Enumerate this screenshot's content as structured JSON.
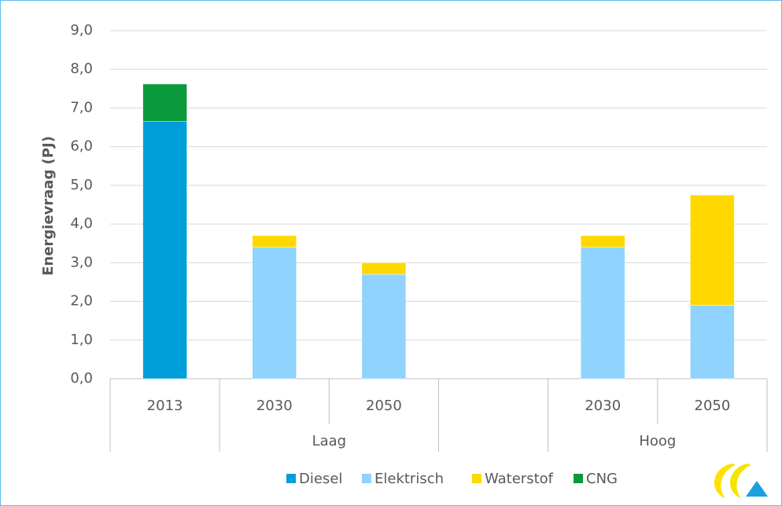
{
  "chart_data": {
    "type": "stacked_bar",
    "y_label": "Energievraag (PJ)",
    "categories": [
      "2013",
      "2030",
      "2050",
      null,
      "2030",
      "2050"
    ],
    "groups": [
      {
        "label": "Laag",
        "span": [
          1,
          2
        ]
      },
      {
        "label": "Hoog",
        "span": [
          4,
          5
        ]
      }
    ],
    "series": [
      {
        "name": "Diesel",
        "color": "#009ed8",
        "values": [
          6.65,
          0,
          0,
          null,
          0,
          0
        ]
      },
      {
        "name": "Elektrisch",
        "color": "#8fd3fe",
        "values": [
          0,
          3.4,
          2.7,
          null,
          3.4,
          1.9
        ]
      },
      {
        "name": "Waterstof",
        "color": "#ffd800",
        "values": [
          0,
          0.3,
          0.3,
          null,
          0.3,
          2.85
        ]
      },
      {
        "name": "CNG",
        "color": "#0a9a3c",
        "values": [
          0.97,
          0,
          0,
          null,
          0,
          0
        ]
      }
    ],
    "ylim": [
      0,
      9
    ],
    "yticks": [
      {
        "value": 0,
        "label": "0,0"
      },
      {
        "value": 1,
        "label": "1,0"
      },
      {
        "value": 2,
        "label": "2,0"
      },
      {
        "value": 3,
        "label": "3,0"
      },
      {
        "value": 4,
        "label": "4,0"
      },
      {
        "value": 5,
        "label": "5,0"
      },
      {
        "value": 6,
        "label": "6,0"
      },
      {
        "value": 7,
        "label": "7,0"
      },
      {
        "value": 8,
        "label": "8,0"
      },
      {
        "value": 9,
        "label": "9,0"
      }
    ],
    "grid": true,
    "legend": "bottom"
  }
}
